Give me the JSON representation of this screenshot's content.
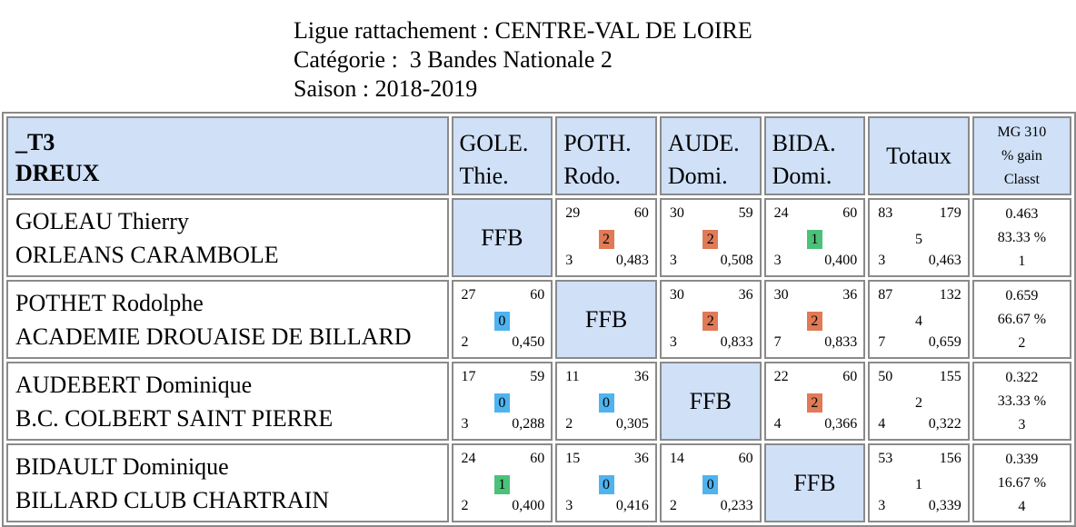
{
  "header": {
    "line1": "Ligue rattachement : CENTRE-VAL DE LOIRE",
    "line2": "Catégorie :  3 Bandes Nationale 2",
    "line3": "Saison : 2018-2019"
  },
  "table_header": {
    "team_code": "_T3",
    "team_city": "DREUX",
    "columns": [
      {
        "line1": "GOLE.",
        "line2": "Thie."
      },
      {
        "line1": "POTH.",
        "line2": "Rodo."
      },
      {
        "line1": "AUDE.",
        "line2": "Domi."
      },
      {
        "line1": "BIDA.",
        "line2": "Domi."
      }
    ],
    "totals": "Totaux",
    "mg_line1": "MG 310",
    "mg_line2": "% gain",
    "mg_line3": "Classt"
  },
  "rows": [
    {
      "name": "GOLEAU Thierry",
      "club": "ORLEANS CARAMBOLE",
      "cells": [
        {
          "ffb": "FFB"
        },
        {
          "points": "29",
          "reprises": "60",
          "score": "2",
          "result": "win",
          "series": "3",
          "avg": "0,483"
        },
        {
          "points": "30",
          "reprises": "59",
          "score": "2",
          "result": "win",
          "series": "3",
          "avg": "0,508"
        },
        {
          "points": "24",
          "reprises": "60",
          "score": "1",
          "result": "draw",
          "series": "3",
          "avg": "0,400"
        }
      ],
      "totals": {
        "points": "83",
        "reprises": "179",
        "score": "5",
        "series": "3",
        "avg": "0,463"
      },
      "mg": {
        "avg": "0.463",
        "pct": "83.33 %",
        "rank": "1"
      }
    },
    {
      "name": "POTHET Rodolphe",
      "club": "ACADEMIE DROUAISE DE BILLARD",
      "cells": [
        {
          "points": "27",
          "reprises": "60",
          "score": "0",
          "result": "loss",
          "series": "2",
          "avg": "0,450"
        },
        {
          "ffb": "FFB"
        },
        {
          "points": "30",
          "reprises": "36",
          "score": "2",
          "result": "win",
          "series": "3",
          "avg": "0,833"
        },
        {
          "points": "30",
          "reprises": "36",
          "score": "2",
          "result": "win",
          "series": "7",
          "avg": "0,833"
        }
      ],
      "totals": {
        "points": "87",
        "reprises": "132",
        "score": "4",
        "series": "7",
        "avg": "0,659"
      },
      "mg": {
        "avg": "0.659",
        "pct": "66.67 %",
        "rank": "2"
      }
    },
    {
      "name": "AUDEBERT Dominique",
      "club": "B.C. COLBERT SAINT PIERRE",
      "cells": [
        {
          "points": "17",
          "reprises": "59",
          "score": "0",
          "result": "loss",
          "series": "3",
          "avg": "0,288"
        },
        {
          "points": "11",
          "reprises": "36",
          "score": "0",
          "result": "loss",
          "series": "2",
          "avg": "0,305"
        },
        {
          "ffb": "FFB"
        },
        {
          "points": "22",
          "reprises": "60",
          "score": "2",
          "result": "win",
          "series": "4",
          "avg": "0,366"
        }
      ],
      "totals": {
        "points": "50",
        "reprises": "155",
        "score": "2",
        "series": "4",
        "avg": "0,322"
      },
      "mg": {
        "avg": "0.322",
        "pct": "33.33 %",
        "rank": "3"
      }
    },
    {
      "name": "BIDAULT Dominique",
      "club": "BILLARD CLUB CHARTRAIN",
      "cells": [
        {
          "points": "24",
          "reprises": "60",
          "score": "1",
          "result": "draw",
          "series": "2",
          "avg": "0,400"
        },
        {
          "points": "15",
          "reprises": "36",
          "score": "0",
          "result": "loss",
          "series": "3",
          "avg": "0,416"
        },
        {
          "points": "14",
          "reprises": "60",
          "score": "0",
          "result": "loss",
          "series": "2",
          "avg": "0,233"
        },
        {
          "ffb": "FFB"
        }
      ],
      "totals": {
        "points": "53",
        "reprises": "156",
        "score": "1",
        "series": "3",
        "avg": "0,339"
      },
      "mg": {
        "avg": "0.339",
        "pct": "16.67 %",
        "rank": "4"
      }
    }
  ],
  "colors": {
    "header_fill": "#cfe0f7",
    "win": "#e07a57",
    "draw": "#4cc17a",
    "loss": "#4fb3ef"
  }
}
